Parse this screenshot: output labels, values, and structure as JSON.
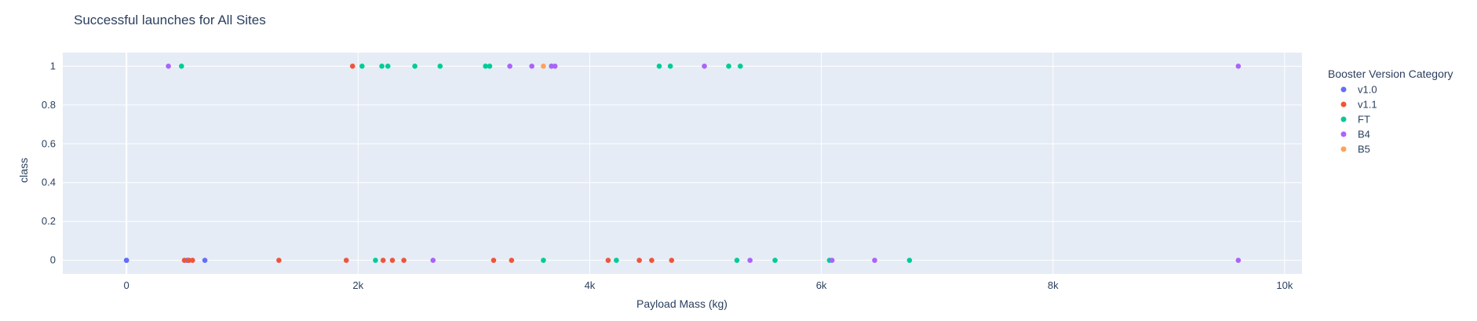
{
  "chart_data": {
    "type": "scatter",
    "title": "Successful launches for All Sites",
    "xlabel": "Payload Mass (kg)",
    "ylabel": "class",
    "xlim": [
      -550,
      10150
    ],
    "ylim": [
      -0.07,
      1.07
    ],
    "x_ticks": [
      0,
      2000,
      4000,
      6000,
      8000,
      10000
    ],
    "x_tick_labels": [
      "0",
      "2k",
      "4k",
      "6k",
      "8k",
      "10k"
    ],
    "y_ticks": [
      0,
      0.2,
      0.4,
      0.6,
      0.8,
      1
    ],
    "y_tick_labels": [
      "0",
      "0.2",
      "0.4",
      "0.6",
      "0.8",
      "1"
    ],
    "grid": true,
    "legend_title": "Booster Version Category",
    "legend_position": "right",
    "series": [
      {
        "name": "v1.0",
        "color": "#636efa",
        "x": [
          0,
          0,
          525,
          677
        ],
        "y": [
          0,
          0,
          0,
          0
        ]
      },
      {
        "name": "v1.1",
        "color": "#ef553b",
        "x": [
          1952,
          500,
          540,
          570,
          1316,
          1898,
          2216,
          2296,
          2395,
          3170,
          3325,
          4159,
          4428,
          4535,
          4707
        ],
        "y": [
          1,
          0,
          0,
          0,
          0,
          0,
          0,
          0,
          0,
          0,
          0,
          0,
          0,
          0,
          0
        ]
      },
      {
        "name": "FT",
        "color": "#00cc96",
        "x": [
          475,
          2034,
          2205,
          2257,
          2490,
          2708,
          3100,
          3136,
          3669,
          4600,
          4696,
          5300,
          5200,
          2150,
          3600,
          4230,
          5271,
          5600,
          6070,
          6761
        ],
        "y": [
          1,
          1,
          1,
          1,
          1,
          1,
          1,
          1,
          1,
          1,
          1,
          1,
          1,
          0,
          0,
          0,
          0,
          0,
          0,
          0
        ]
      },
      {
        "name": "B4",
        "color": "#ab63fa",
        "x": [
          362,
          3310,
          3500,
          3700,
          3670,
          4990,
          9600,
          2647,
          5384,
          6092,
          6460,
          9600
        ],
        "y": [
          1,
          1,
          1,
          1,
          1,
          1,
          1,
          0,
          0,
          0,
          0,
          0
        ]
      },
      {
        "name": "B5",
        "color": "#ffa15a",
        "x": [
          3600
        ],
        "y": [
          1
        ]
      }
    ]
  }
}
